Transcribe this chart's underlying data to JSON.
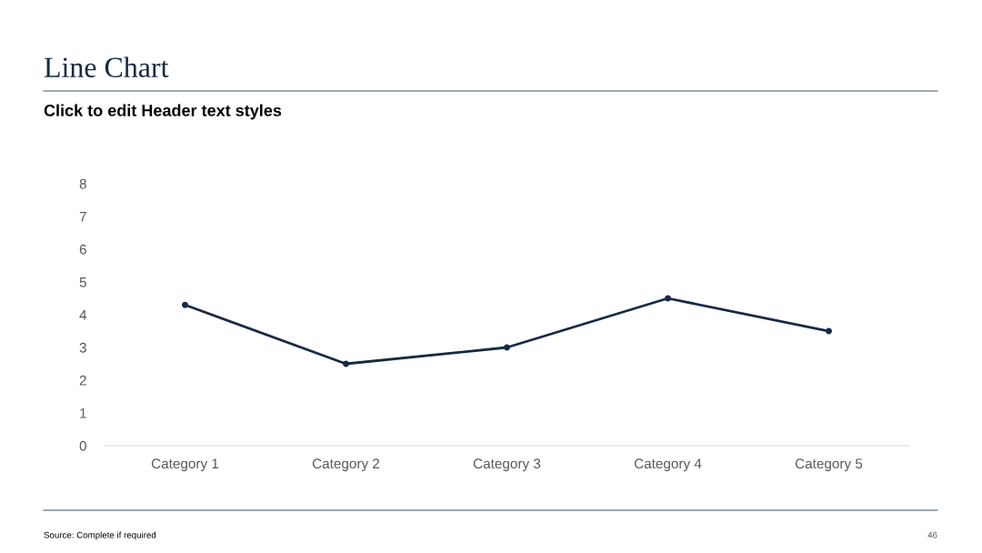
{
  "chart_data": {
    "type": "line",
    "title": "Line Chart",
    "subtitle": "Click to edit Header text styles",
    "categories": [
      "Category 1",
      "Category 2",
      "Category 3",
      "Category 4",
      "Category 5"
    ],
    "series": [
      {
        "color": "#172a45",
        "values": [
          4.3,
          2.5,
          3.0,
          4.5,
          3.5
        ]
      }
    ],
    "ylim": [
      0,
      8
    ],
    "yticks": [
      0,
      1,
      2,
      3,
      4,
      5,
      6,
      7,
      8
    ],
    "grid": false,
    "legend": false,
    "marker": "circle",
    "line_style": "solid",
    "annotations": [
      "Source: Complete if required",
      "46"
    ]
  }
}
